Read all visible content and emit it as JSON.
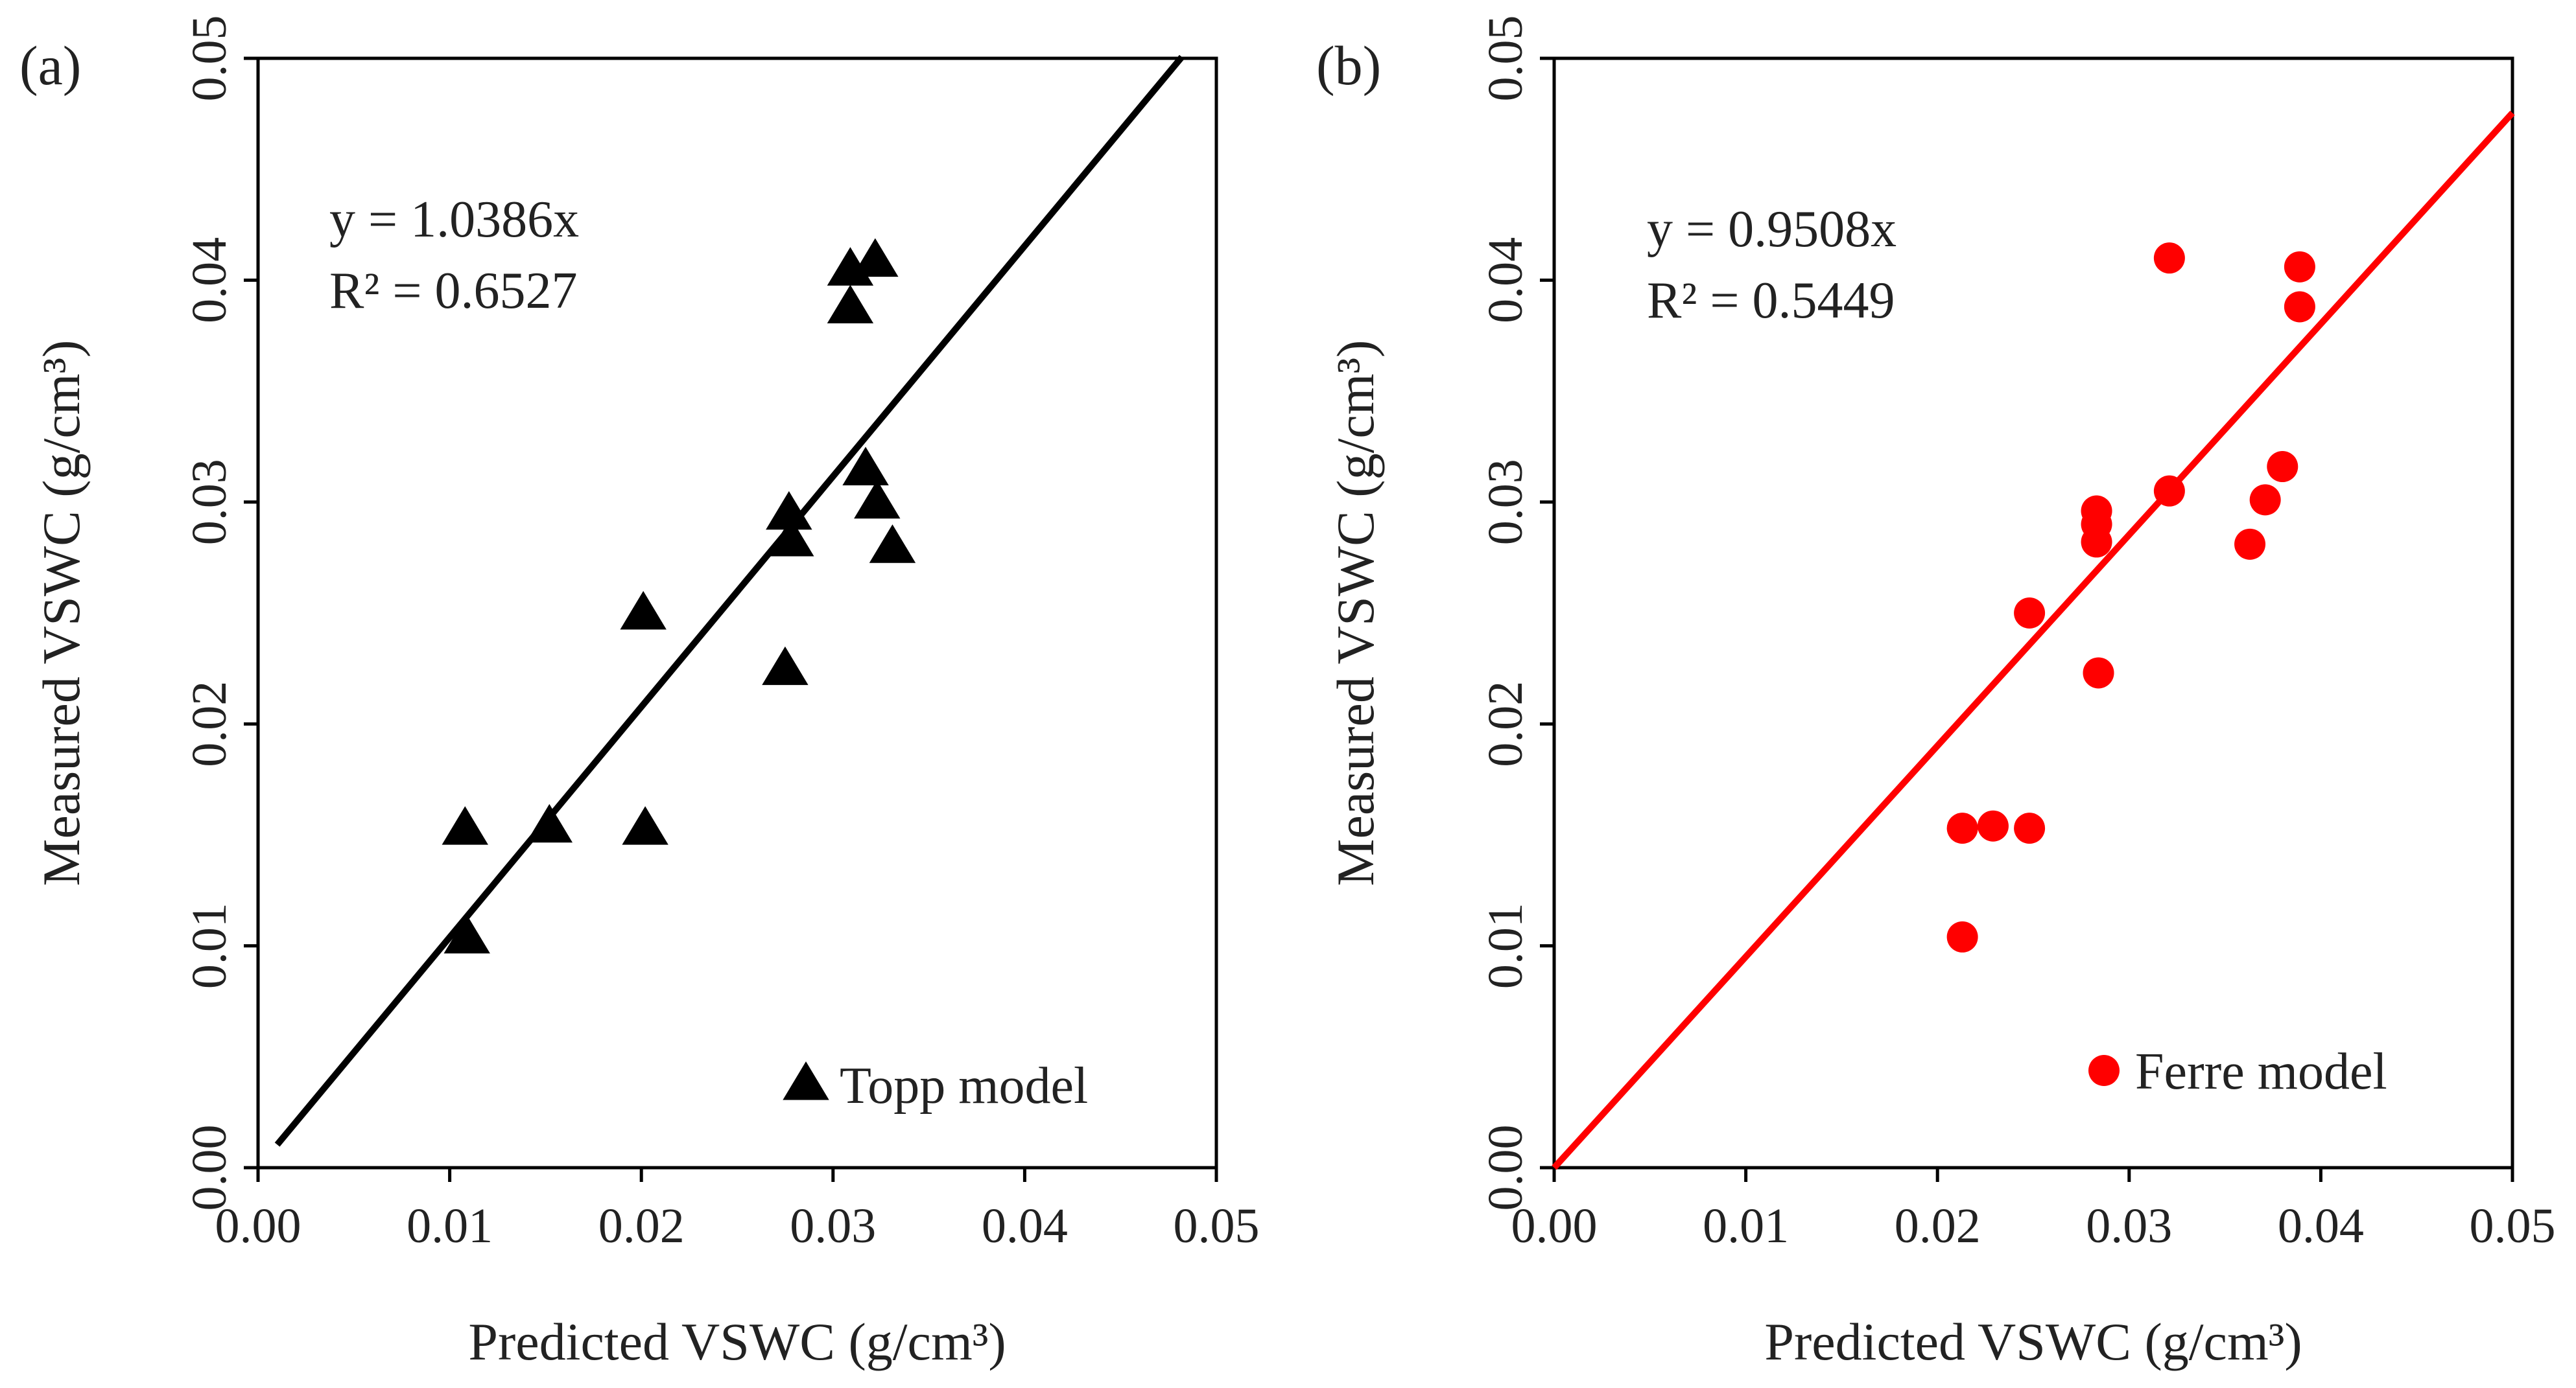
{
  "chart_data": [
    {
      "type": "scatter",
      "panel_label": "(a)",
      "xlabel": "Predicted VSWC (g/cm³)",
      "ylabel": "Measured VSWC (g/cm³)",
      "xlim": [
        0,
        0.05
      ],
      "ylim": [
        0,
        0.05
      ],
      "x_ticks": [
        "0.00",
        "0.01",
        "0.02",
        "0.03",
        "0.04",
        "0.05"
      ],
      "y_ticks": [
        "0.00",
        "0.01",
        "0.02",
        "0.03",
        "0.04",
        "0.05"
      ],
      "series": [
        {
          "name": "Topp model",
          "marker": "triangle",
          "color": "#000000",
          "points": [
            [
              0.0108,
              0.0153
            ],
            [
              0.0109,
              0.0104
            ],
            [
              0.0152,
              0.0154
            ],
            [
              0.0201,
              0.025
            ],
            [
              0.0202,
              0.0153
            ],
            [
              0.0275,
              0.0225
            ],
            [
              0.0277,
              0.0295
            ],
            [
              0.0278,
              0.0283
            ],
            [
              0.0309,
              0.0405
            ],
            [
              0.0309,
              0.0388
            ],
            [
              0.0317,
              0.0315
            ],
            [
              0.0322,
              0.0409
            ],
            [
              0.0323,
              0.03
            ],
            [
              0.0331,
              0.028
            ]
          ]
        }
      ],
      "trendline": {
        "slope": 1.0386,
        "x_range": [
          0.001,
          0.0482
        ],
        "color": "#000000"
      },
      "annotation": {
        "equation": "y = 1.0386x",
        "r2": "R² = 0.6527"
      },
      "legend": {
        "label": "Topp model",
        "position": "bottom-right"
      }
    },
    {
      "type": "scatter",
      "panel_label": "(b)",
      "xlabel": "Predicted VSWC (g/cm³)",
      "ylabel": "Measured VSWC (g/cm³)",
      "xlim": [
        0,
        0.05
      ],
      "ylim": [
        0,
        0.05
      ],
      "x_ticks": [
        "0.00",
        "0.01",
        "0.02",
        "0.03",
        "0.04",
        "0.05"
      ],
      "y_ticks": [
        "0.00",
        "0.01",
        "0.02",
        "0.03",
        "0.04",
        "0.05"
      ],
      "series": [
        {
          "name": "Ferre model",
          "marker": "circle",
          "color": "#ff0000",
          "points": [
            [
              0.0213,
              0.0153
            ],
            [
              0.0213,
              0.0104
            ],
            [
              0.0229,
              0.0154
            ],
            [
              0.0248,
              0.0153
            ],
            [
              0.0248,
              0.025
            ],
            [
              0.0283,
              0.0296
            ],
            [
              0.0283,
              0.029
            ],
            [
              0.0283,
              0.0282
            ],
            [
              0.0284,
              0.0223
            ],
            [
              0.0321,
              0.041
            ],
            [
              0.0321,
              0.0305
            ],
            [
              0.0363,
              0.0281
            ],
            [
              0.0371,
              0.0301
            ],
            [
              0.038,
              0.0316
            ],
            [
              0.0389,
              0.0406
            ],
            [
              0.0389,
              0.0388
            ]
          ]
        }
      ],
      "trendline": {
        "slope": 0.9508,
        "x_range": [
          0.0,
          0.05
        ],
        "color": "#ff0000"
      },
      "annotation": {
        "equation": "y = 0.9508x",
        "r2": "R² = 0.5449"
      },
      "legend": {
        "label": "Ferre model",
        "position": "bottom-right"
      }
    }
  ]
}
